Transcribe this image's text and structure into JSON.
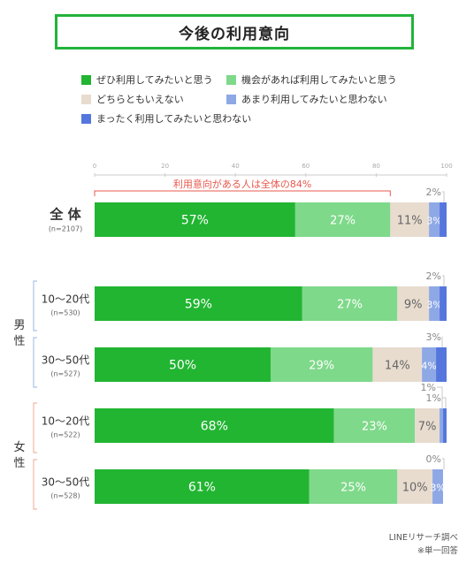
{
  "title": "今後の利用意向",
  "legend": [
    {
      "label": "ぜひ利用してみたいと思う",
      "color": "#22b532"
    },
    {
      "label": "機会があれば利用してみたいと思う",
      "color": "#7ed98a"
    },
    {
      "label": "どちらともいえない",
      "color": "#e8dccf"
    },
    {
      "label": "あまり利用してみたいと思わない",
      "color": "#8ea8e6"
    },
    {
      "label": "まったく利用してみたいと思わない",
      "color": "#5577dd"
    }
  ],
  "footer": {
    "source": "LINEリサーチ調べ",
    "note": "※単一回答"
  },
  "chart_data": {
    "type": "bar",
    "orientation": "horizontal",
    "stacked": true,
    "xlim": [
      0,
      100
    ],
    "xticks": [
      0,
      20,
      40,
      60,
      80,
      100
    ],
    "bracket_label": "利用意向がある人は全体の84%",
    "group_labels": [
      {
        "label": "男性"
      },
      {
        "label": "女性"
      }
    ],
    "categories": [
      {
        "label": "全 体",
        "n": "(n=2107)"
      },
      {
        "label": "10〜20代",
        "n": "(n=530)"
      },
      {
        "label": "30〜50代",
        "n": "(n=527)"
      },
      {
        "label": "10〜20代",
        "n": "(n=522)"
      },
      {
        "label": "30〜50代",
        "n": "(n=528)"
      }
    ],
    "series": [
      {
        "name": "ぜひ利用してみたいと思う",
        "values": [
          57,
          59,
          50,
          68,
          61
        ]
      },
      {
        "name": "機会があれば利用してみたいと思う",
        "values": [
          27,
          27,
          29,
          23,
          25
        ]
      },
      {
        "name": "どちらともいえない",
        "values": [
          11,
          9,
          14,
          7,
          10
        ]
      },
      {
        "name": "あまり利用してみたいと思わない",
        "values": [
          3,
          3,
          4,
          1,
          3
        ]
      },
      {
        "name": "まったく利用してみたいと思わない",
        "values": [
          2,
          2,
          3,
          1,
          0
        ]
      }
    ],
    "value_suffix": "%"
  }
}
